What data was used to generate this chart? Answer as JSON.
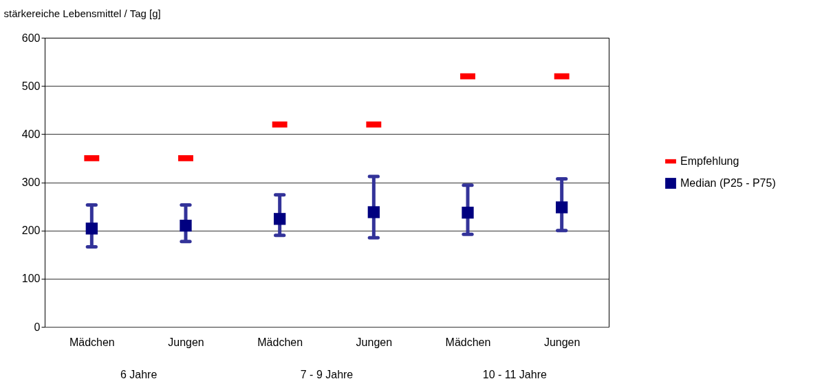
{
  "chart_data": {
    "type": "scatter",
    "ylabel": "stärkereiche Lebensmittel / Tag [g]",
    "categories": [
      "Mädchen",
      "Jungen",
      "Mädchen",
      "Jungen",
      "Mädchen",
      "Jungen"
    ],
    "annotations": [
      "6 Jahre",
      "7 - 9 Jahre",
      "10 - 11 Jahre"
    ],
    "series": [
      {
        "name": "Empfehlung",
        "color": "#ff0000",
        "values": [
          350,
          350,
          420,
          420,
          520,
          520
        ]
      },
      {
        "name": "Median (P25 - P75)",
        "marker": "square",
        "color": "#000080",
        "values": [
          204,
          210,
          224,
          238,
          237,
          248
        ],
        "errors": [
          [
            166,
            253
          ],
          [
            177,
            253
          ],
          [
            190,
            274
          ],
          [
            185,
            312
          ],
          [
            192,
            294
          ],
          [
            200,
            307
          ]
        ]
      }
    ],
    "ylim": [
      0,
      600
    ],
    "yticks": [
      0,
      100,
      200,
      300,
      400,
      500,
      600
    ],
    "grid": "y",
    "legend": "right"
  }
}
